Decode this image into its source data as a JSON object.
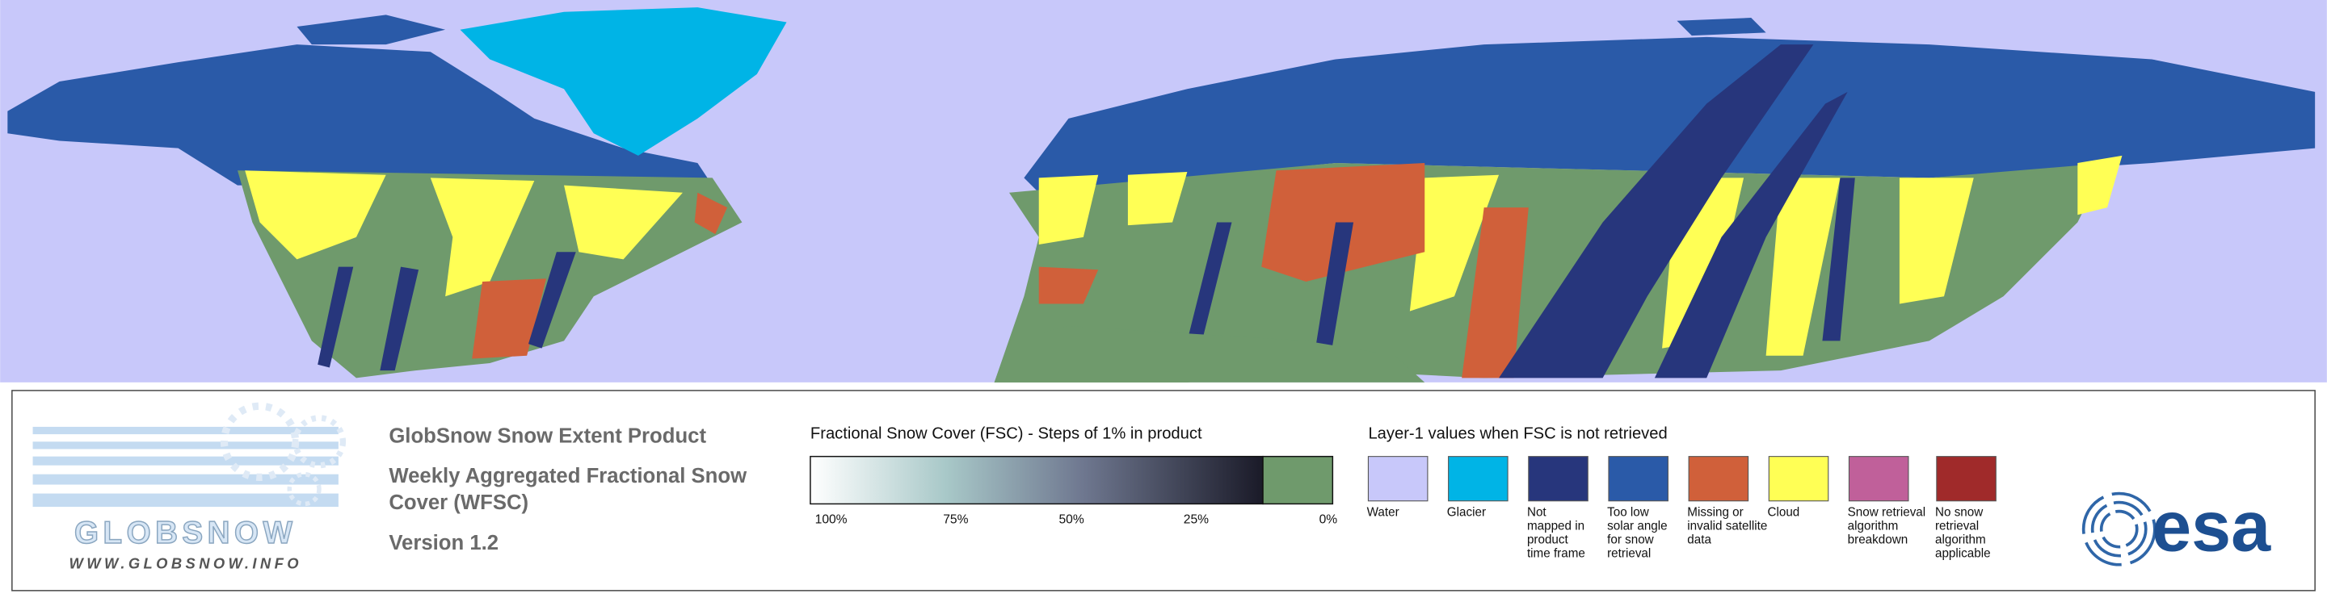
{
  "logo": {
    "name": "GLOBSNOW",
    "url": "WWW.GLOBSNOW.INFO"
  },
  "product": {
    "title": "GlobSnow Snow Extent Product",
    "subtitle_lines": [
      "Weekly Aggregated Fractional Snow",
      "Cover (WFSC)"
    ],
    "version": "Version 1.2"
  },
  "fsc_scale": {
    "title": "Fractional Snow Cover (FSC) - Steps of 1% in product",
    "tick_labels": [
      "100%",
      "75%",
      "50%",
      "25%",
      "0%"
    ]
  },
  "layer1_legend": {
    "title": "Layer-1 values when FSC is not retrieved",
    "items": [
      {
        "label_lines": [
          "Water"
        ],
        "color": "#c8c8fa"
      },
      {
        "label_lines": [
          "Glacier"
        ],
        "color": "#00b4e6"
      },
      {
        "label_lines": [
          "Not",
          "mapped in",
          "product",
          "time frame"
        ],
        "color": "#27367c"
      },
      {
        "label_lines": [
          "Too low",
          "solar angle",
          "for snow",
          "retrieval"
        ],
        "color": "#2a5aa8"
      },
      {
        "label_lines": [
          "Missing or",
          "invalid satellite",
          "data"
        ],
        "color": "#d0603a"
      },
      {
        "label_lines": [
          "Cloud"
        ],
        "color": "#ffff55"
      },
      {
        "label_lines": [
          "Snow retrieval",
          "algorithm",
          "breakdown"
        ],
        "color": "#c0609a"
      },
      {
        "label_lines": [
          "No snow",
          "retrieval",
          "algorithm",
          "applicable"
        ],
        "color": "#a02a2a"
      }
    ]
  },
  "agency": {
    "name": "esa"
  }
}
